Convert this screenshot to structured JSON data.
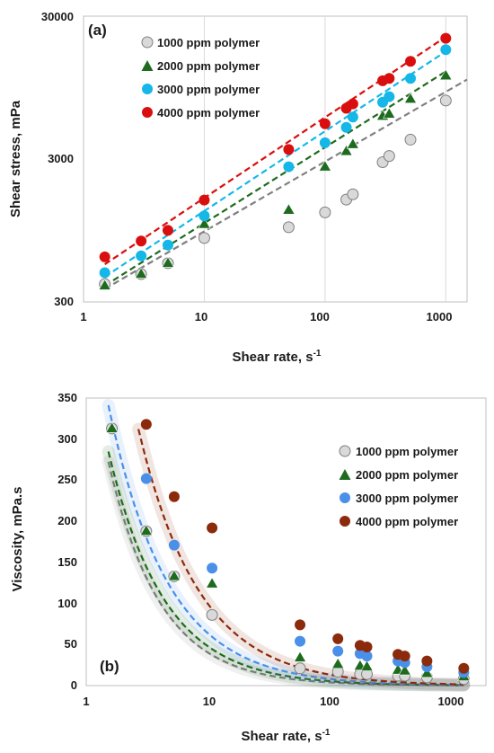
{
  "chart_data": [
    {
      "type": "scatter",
      "panel_label": "(a)",
      "xlabel": "Shear rate, s",
      "xlabel_sup": "-1",
      "ylabel": "Shear stress, mPa",
      "xscale": "log",
      "yscale": "log",
      "xlim": [
        1,
        1500
      ],
      "ylim": [
        300,
        30000
      ],
      "x_ticks": [
        "1",
        "10",
        "100",
        "1000"
      ],
      "y_ticks": [
        "300",
        "3000",
        "30000"
      ],
      "grid": "vertical",
      "legend_position": "top-left",
      "series": [
        {
          "name": "1000 ppm polymer",
          "marker": "circle",
          "color": "#d9d9d9",
          "edge": "#7f7f7f",
          "x": [
            1.5,
            3,
            5,
            10,
            50,
            100,
            150,
            170,
            300,
            340,
            510,
            1000
          ],
          "y": [
            400,
            470,
            560,
            840,
            1000,
            1270,
            1560,
            1700,
            2850,
            3150,
            4100,
            7700
          ],
          "fit": {
            "x": [
              1.5,
              1500
            ],
            "y": [
              370,
              10800
            ],
            "color": "#808080"
          }
        },
        {
          "name": "2000 ppm polymer",
          "marker": "triangle",
          "color": "#1e6b1e",
          "edge": "#1e6b1e",
          "x": [
            1.5,
            3,
            5,
            10,
            50,
            100,
            150,
            170,
            300,
            340,
            510,
            1000
          ],
          "y": [
            390,
            470,
            560,
            1050,
            1320,
            2650,
            3400,
            3800,
            6000,
            6200,
            7900,
            11500
          ],
          "fit": {
            "x": [
              1.5,
              1000
            ],
            "y": [
              390,
              12300
            ],
            "color": "#1e6b1e"
          }
        },
        {
          "name": "3000 ppm polymer",
          "marker": "circle",
          "color": "#14b7e8",
          "edge": "#14b7e8",
          "x": [
            1.5,
            3,
            5,
            10,
            50,
            100,
            150,
            170,
            300,
            340,
            510,
            1000
          ],
          "y": [
            480,
            630,
            750,
            1200,
            2650,
            3900,
            5000,
            5900,
            7500,
            8200,
            11000,
            17500
          ],
          "fit": {
            "x": [
              1.5,
              1000
            ],
            "y": [
              450,
              17000
            ],
            "color": "#14b7e8"
          }
        },
        {
          "name": "4000 ppm polymer",
          "marker": "circle",
          "color": "#d90f0f",
          "edge": "#d90f0f",
          "x": [
            1.5,
            3,
            5,
            10,
            50,
            100,
            150,
            170,
            300,
            340,
            510,
            1000
          ],
          "y": [
            620,
            800,
            950,
            1550,
            3500,
            5300,
            6800,
            7300,
            10600,
            11000,
            14500,
            21000
          ],
          "fit": {
            "x": [
              1.5,
              1000
            ],
            "y": [
              550,
              21500
            ],
            "color": "#d90f0f"
          }
        }
      ]
    },
    {
      "type": "scatter",
      "panel_label": "(b)",
      "xlabel": "Shear rate, s",
      "xlabel_sup": "-1",
      "ylabel": "Viscosity, mPa.s",
      "xscale": "log",
      "yscale": "linear",
      "xlim": [
        1,
        1500
      ],
      "ylim": [
        0,
        350
      ],
      "x_ticks": [
        "1",
        "10",
        "100",
        "1000"
      ],
      "y_ticks": [
        "0",
        "50",
        "100",
        "150",
        "200",
        "250",
        "300",
        "350"
      ],
      "grid": "none",
      "legend_position": "right",
      "series": [
        {
          "name": "1000 ppm polymer",
          "marker": "circle",
          "color": "#d9d9d9",
          "edge": "#7f7f7f",
          "x": [
            1.6,
            3,
            5,
            10,
            50,
            100,
            150,
            170,
            300,
            340,
            510,
            1000
          ],
          "y": [
            313,
            188,
            133,
            86,
            21,
            17,
            14,
            14,
            12,
            12,
            10,
            8
          ],
          "fit": {
            "a": 417,
            "b": -1.05,
            "xmin": 1.5,
            "xmax": 1000,
            "color": "#808080"
          }
        },
        {
          "name": "2000 ppm polymer",
          "marker": "triangle",
          "color": "#1e6b1e",
          "edge": "#1e6b1e",
          "x": [
            1.6,
            3,
            5,
            10,
            50,
            100,
            150,
            170,
            300,
            340,
            510,
            1000
          ],
          "y": [
            313,
            188,
            133,
            124,
            34,
            26,
            24,
            23,
            19,
            18,
            15,
            11
          ],
          "fit": {
            "a": 424,
            "b": -0.98,
            "xmin": 1.5,
            "xmax": 1000,
            "color": "#1e6b1e"
          }
        },
        {
          "name": "3000 ppm polymer",
          "marker": "circle",
          "color": "#4a8fe8",
          "edge": "#4a8fe8",
          "x": [
            3,
            5,
            10,
            50,
            100,
            150,
            170,
            300,
            340,
            510,
            1000
          ],
          "y": [
            252,
            171,
            143,
            54,
            42,
            39,
            36,
            30,
            28,
            23,
            16
          ],
          "fit": {
            "a": 496,
            "b": -0.922,
            "xmin": 1.5,
            "xmax": 1000,
            "color": "#4a8fe8"
          }
        },
        {
          "name": "4000 ppm polymer",
          "marker": "circle",
          "color": "#8b2b0c",
          "edge": "#8b2b0c",
          "x": [
            3,
            5,
            10,
            50,
            100,
            150,
            170,
            300,
            340,
            510,
            1000
          ],
          "y": [
            318,
            230,
            192,
            74,
            57,
            49,
            47,
            38,
            36,
            30,
            21
          ],
          "fit": {
            "a": 738,
            "b": -0.9,
            "xmin": 2.6,
            "xmax": 1000,
            "color": "#8b2b0c"
          }
        }
      ]
    }
  ]
}
